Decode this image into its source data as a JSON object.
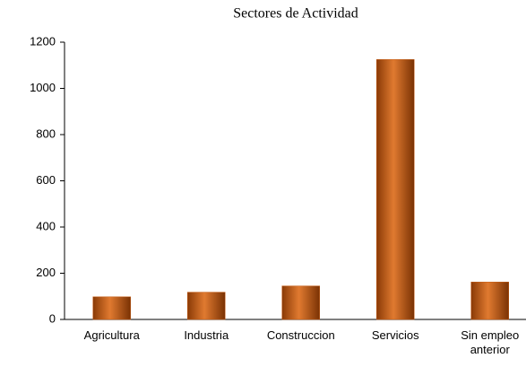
{
  "chart_data": {
    "type": "bar",
    "title": "Sectores de Actividad",
    "categories": [
      "Agricultura",
      "Industria",
      "Construccion",
      "Servicios",
      "Sin empleo anterior"
    ],
    "values": [
      98,
      118,
      145,
      1125,
      162
    ],
    "color": "#c55a11",
    "ylim": [
      0,
      1200
    ],
    "yticks": [
      0,
      200,
      400,
      600,
      800,
      1000,
      1200
    ],
    "grid": false
  }
}
